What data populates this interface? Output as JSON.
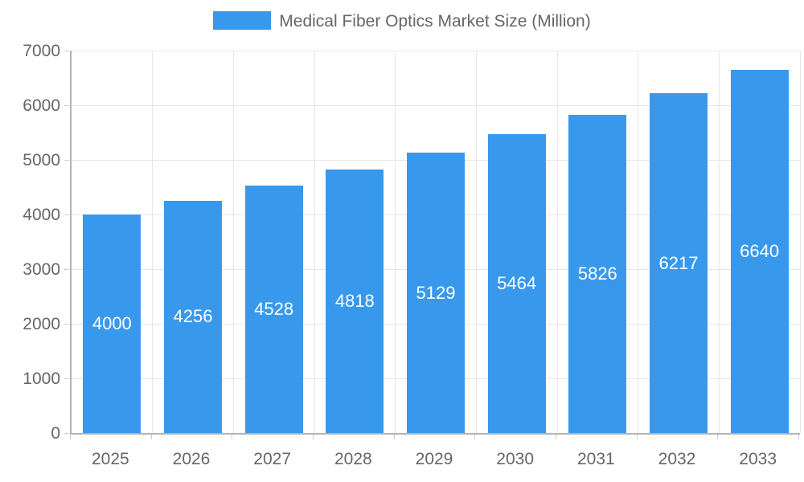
{
  "legend": {
    "label": "Medical Fiber Optics Market Size (Million)"
  },
  "chart_data": {
    "type": "bar",
    "title": "Medical Fiber Optics Market Size (Million)",
    "categories": [
      "2025",
      "2026",
      "2027",
      "2028",
      "2029",
      "2030",
      "2031",
      "2032",
      "2033"
    ],
    "values": [
      4000,
      4256,
      4528,
      4818,
      5129,
      5464,
      5826,
      6217,
      6640
    ],
    "value_labels": [
      "4000",
      "4256",
      "4528",
      "4818",
      "5129",
      "5464",
      "5826",
      "6217",
      "6640"
    ],
    "xlabel": "",
    "ylabel": "",
    "ylim": [
      0,
      7000
    ],
    "yticks": [
      0,
      1000,
      2000,
      3000,
      4000,
      5000,
      6000,
      7000
    ],
    "grid": true,
    "legend_position": "top",
    "colors": {
      "bar": "#3899ec",
      "value_label": "#ffffff",
      "axis_text": "#666666",
      "gridline": "#e6e6e6",
      "axis_line": "#b3b3b3",
      "tick": "#cccccc",
      "background": "#ffffff"
    }
  }
}
